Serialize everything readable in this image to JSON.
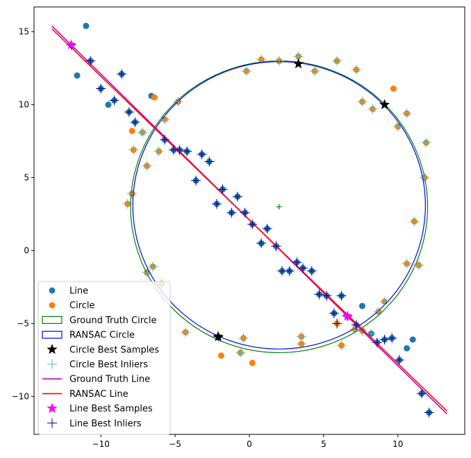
{
  "chart_data": {
    "type": "scatter",
    "title": "",
    "xlabel": "",
    "ylabel": "",
    "xlim": [
      -14.5,
      14.5
    ],
    "ylim": [
      -12.6,
      16.7
    ],
    "xticks": [
      -10,
      -5,
      0,
      5,
      10
    ],
    "yticks": [
      -10,
      -5,
      0,
      5,
      10,
      15
    ],
    "grid": false,
    "legend_position": "lower-left",
    "colors": {
      "line_points": "#1f77b4",
      "circle_points": "#ff7f0e",
      "gt_circle": "#008000",
      "ransac_circle": "#0000ff",
      "circle_best_samples": "#000000",
      "circle_best_inliers": "#40c0c0",
      "gt_line": "#bf00bf",
      "ransac_line": "#ff0000",
      "line_best_samples": "#ff00ff",
      "line_best_inliers": "#000080"
    },
    "legend": [
      {
        "label": "Line",
        "kind": "dot",
        "key": "line_points"
      },
      {
        "label": "Circle",
        "kind": "dot",
        "key": "circle_points"
      },
      {
        "label": "Ground Truth Circle",
        "kind": "rect",
        "key": "gt_circle"
      },
      {
        "label": "RANSAC Circle",
        "kind": "rect",
        "key": "ransac_circle"
      },
      {
        "label": "Circle Best Samples",
        "kind": "star",
        "key": "circle_best_samples"
      },
      {
        "label": "Circle Best Inliers",
        "kind": "plus",
        "key": "circle_best_inliers"
      },
      {
        "label": "Ground Truth Line",
        "kind": "line",
        "key": "gt_line"
      },
      {
        "label": "RANSAC Line",
        "kind": "line",
        "key": "ransac_line"
      },
      {
        "label": "Line Best Samples",
        "kind": "star",
        "key": "line_best_samples"
      },
      {
        "label": "Line Best Inliers",
        "kind": "plus",
        "key": "line_best_inliers"
      }
    ],
    "series": {
      "line_points": [
        [
          -12.0,
          14.1
        ],
        [
          -11.6,
          12.0
        ],
        [
          -11.0,
          15.4
        ],
        [
          -10.7,
          13.0
        ],
        [
          -10.0,
          11.1
        ],
        [
          -9.5,
          10.0
        ],
        [
          -9.1,
          10.3
        ],
        [
          -8.6,
          12.1
        ],
        [
          -8.1,
          9.5
        ],
        [
          -7.7,
          8.8
        ],
        [
          -6.6,
          10.6
        ],
        [
          -5.7,
          7.6
        ],
        [
          -5.1,
          6.9
        ],
        [
          -4.7,
          6.9
        ],
        [
          -4.2,
          6.8
        ],
        [
          -3.6,
          4.8
        ],
        [
          -3.2,
          6.6
        ],
        [
          -2.7,
          6.1
        ],
        [
          -2.2,
          3.2
        ],
        [
          -1.8,
          4.2
        ],
        [
          -1.2,
          2.6
        ],
        [
          -0.8,
          3.7
        ],
        [
          -0.3,
          2.6
        ],
        [
          0.2,
          1.8
        ],
        [
          0.8,
          0.5
        ],
        [
          1.2,
          1.5
        ],
        [
          1.8,
          0.3
        ],
        [
          2.2,
          -1.4
        ],
        [
          2.7,
          -1.4
        ],
        [
          3.2,
          -0.8
        ],
        [
          3.6,
          -1.2
        ],
        [
          4.2,
          -1.4
        ],
        [
          4.7,
          -3.0
        ],
        [
          5.2,
          -3.1
        ],
        [
          5.7,
          -4.3
        ],
        [
          6.2,
          -3.1
        ],
        [
          6.6,
          -4.5
        ],
        [
          7.2,
          -5.1
        ],
        [
          7.6,
          -3.8
        ],
        [
          8.2,
          -5.7
        ],
        [
          8.6,
          -6.3
        ],
        [
          9.1,
          -6.1
        ],
        [
          9.6,
          -6.0
        ],
        [
          10.1,
          -7.5
        ],
        [
          10.6,
          -6.7
        ],
        [
          11.0,
          -6.1
        ],
        [
          11.6,
          -9.8
        ],
        [
          12.1,
          -11.1
        ]
      ],
      "circle_points": [
        [
          -0.2,
          12.3
        ],
        [
          0.8,
          13.1
        ],
        [
          2.0,
          13.0
        ],
        [
          3.3,
          13.3
        ],
        [
          4.4,
          12.3
        ],
        [
          5.9,
          13.0
        ],
        [
          7.2,
          12.4
        ],
        [
          7.6,
          10.2
        ],
        [
          8.3,
          9.7
        ],
        [
          9.7,
          11.1
        ],
        [
          10.0,
          8.5
        ],
        [
          10.6,
          9.4
        ],
        [
          11.9,
          7.4
        ],
        [
          11.8,
          5.0
        ],
        [
          11.1,
          2.0
        ],
        [
          11.4,
          -1.0
        ],
        [
          10.6,
          -0.9
        ],
        [
          9.1,
          -3.5
        ],
        [
          8.7,
          -4.2
        ],
        [
          7.6,
          -5.5
        ],
        [
          7.1,
          -5.4
        ],
        [
          6.2,
          -6.5
        ],
        [
          5.9,
          -5.0
        ],
        [
          3.5,
          -6.4
        ],
        [
          3.5,
          -5.9
        ],
        [
          0.2,
          -7.7
        ],
        [
          -0.4,
          -6.0
        ],
        [
          -0.6,
          -7.0
        ],
        [
          -1.9,
          -7.2
        ],
        [
          -2.1,
          -5.9
        ],
        [
          -4.3,
          -5.6
        ],
        [
          -5.9,
          -2.3
        ],
        [
          -6.5,
          -1.1
        ],
        [
          -6.9,
          -1.5
        ],
        [
          -8.2,
          3.2
        ],
        [
          -7.9,
          3.9
        ],
        [
          -6.9,
          5.8
        ],
        [
          -7.8,
          6.9
        ],
        [
          -7.9,
          8.2
        ],
        [
          -7.2,
          8.1
        ],
        [
          -6.1,
          6.8
        ],
        [
          -5.7,
          9.0
        ],
        [
          -4.8,
          10.2
        ],
        [
          -6.4,
          10.5
        ]
      ],
      "gt_circle": {
        "cx": 2.0,
        "cy": 3.0,
        "r": 10.0
      },
      "gt_circle_center": [
        2.0,
        3.0
      ],
      "ransac_circle": {
        "cx": 2.0,
        "cy": 3.1,
        "r": 9.85
      },
      "circle_best_samples": [
        [
          3.3,
          12.8
        ],
        [
          9.1,
          10.0
        ],
        [
          -2.1,
          -5.9
        ]
      ],
      "circle_best_inliers": [
        [
          -0.2,
          12.3
        ],
        [
          0.8,
          13.1
        ],
        [
          2.0,
          13.0
        ],
        [
          3.3,
          13.3
        ],
        [
          4.4,
          12.3
        ],
        [
          5.9,
          13.0
        ],
        [
          7.2,
          12.4
        ],
        [
          7.6,
          10.2
        ],
        [
          8.3,
          9.7
        ],
        [
          10.0,
          8.5
        ],
        [
          10.6,
          9.4
        ],
        [
          11.9,
          7.4
        ],
        [
          11.8,
          5.0
        ],
        [
          11.1,
          2.0
        ],
        [
          11.4,
          -1.0
        ],
        [
          10.6,
          -0.9
        ],
        [
          9.1,
          -3.5
        ],
        [
          8.7,
          -4.2
        ],
        [
          7.6,
          -5.5
        ],
        [
          7.1,
          -5.4
        ],
        [
          6.2,
          -6.5
        ],
        [
          3.5,
          -6.4
        ],
        [
          3.5,
          -5.9
        ],
        [
          -0.4,
          -6.0
        ],
        [
          -0.6,
          -7.0
        ],
        [
          -2.1,
          -5.9
        ],
        [
          -4.3,
          -5.6
        ],
        [
          -5.9,
          -2.3
        ],
        [
          -6.5,
          -1.1
        ],
        [
          -6.9,
          -1.5
        ],
        [
          -8.2,
          3.2
        ],
        [
          -7.9,
          3.9
        ],
        [
          -6.9,
          5.8
        ],
        [
          -7.8,
          6.9
        ],
        [
          -7.2,
          8.1
        ],
        [
          -6.1,
          6.8
        ],
        [
          -5.7,
          9.0
        ],
        [
          -4.8,
          10.2
        ],
        [
          8.2,
          -5.7
        ]
      ],
      "gt_line": [
        [
          -13.3,
          15.4
        ],
        [
          13.3,
          -11.2
        ]
      ],
      "ransac_line": [
        [
          -13.3,
          15.2
        ],
        [
          13.3,
          -11.0
        ]
      ],
      "line_best_samples": [
        [
          -12.0,
          14.1
        ],
        [
          6.6,
          -4.5
        ]
      ],
      "line_best_inliers": [
        [
          -12.0,
          14.1
        ],
        [
          -10.7,
          13.0
        ],
        [
          -10.0,
          11.1
        ],
        [
          -9.1,
          10.3
        ],
        [
          -8.6,
          12.1
        ],
        [
          -8.1,
          9.5
        ],
        [
          -7.7,
          8.8
        ],
        [
          -5.7,
          7.6
        ],
        [
          -5.1,
          6.9
        ],
        [
          -4.7,
          6.9
        ],
        [
          -4.2,
          6.8
        ],
        [
          -3.6,
          4.8
        ],
        [
          -3.2,
          6.6
        ],
        [
          -2.7,
          6.1
        ],
        [
          -2.2,
          3.2
        ],
        [
          -1.8,
          4.2
        ],
        [
          -1.2,
          2.6
        ],
        [
          -0.8,
          3.7
        ],
        [
          -0.3,
          2.6
        ],
        [
          0.2,
          1.8
        ],
        [
          0.8,
          0.5
        ],
        [
          1.2,
          1.5
        ],
        [
          1.8,
          0.3
        ],
        [
          2.2,
          -1.4
        ],
        [
          2.7,
          -1.4
        ],
        [
          3.2,
          -0.8
        ],
        [
          3.6,
          -1.2
        ],
        [
          4.2,
          -1.4
        ],
        [
          4.7,
          -3.0
        ],
        [
          5.2,
          -3.1
        ],
        [
          5.7,
          -4.3
        ],
        [
          5.9,
          -5.0
        ],
        [
          6.2,
          -3.1
        ],
        [
          6.6,
          -4.5
        ],
        [
          7.2,
          -5.1
        ],
        [
          8.6,
          -6.3
        ],
        [
          9.1,
          -6.1
        ],
        [
          9.6,
          -6.0
        ],
        [
          10.1,
          -7.5
        ],
        [
          11.6,
          -9.8
        ],
        [
          12.1,
          -11.1
        ],
        [
          -2.1,
          -5.9
        ]
      ]
    }
  }
}
